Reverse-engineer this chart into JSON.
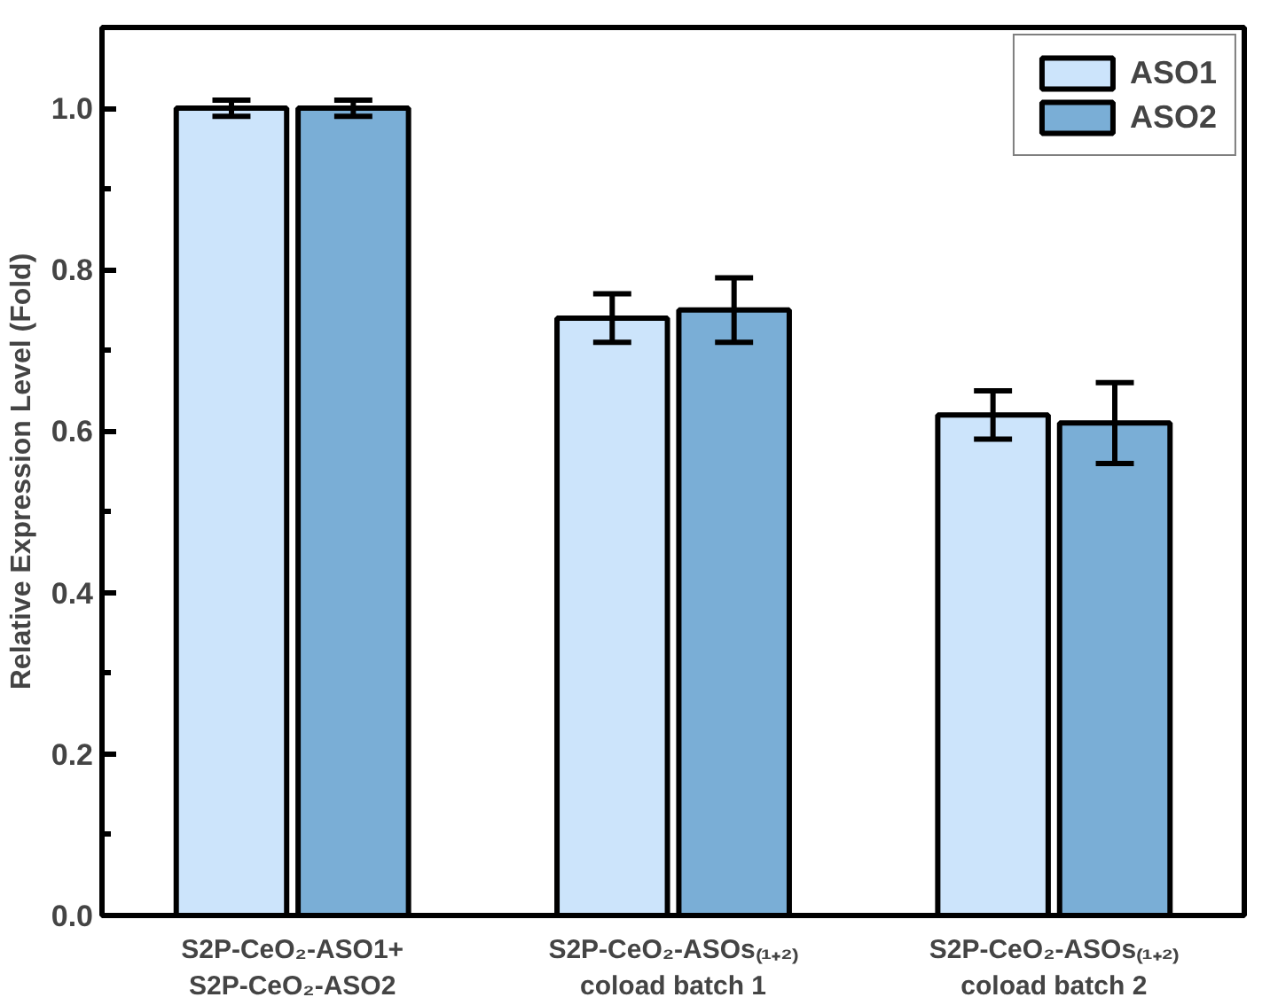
{
  "chart_data": {
    "type": "bar",
    "ylabel": "Relative Expression Level (Fold)",
    "categories": [
      "S2P-CeO₂-ASO1+\nS2P-CeO₂-ASO2",
      "S2P-CeO₂-ASOs₍₁₊₂₎\ncoload batch 1",
      "S2P-CeO₂-ASOs₍₁₊₂₎\ncoload batch 2"
    ],
    "series": [
      {
        "name": "ASO1",
        "color": "#cce4fb",
        "values": [
          1.0,
          0.74,
          0.62
        ],
        "errors": [
          0.01,
          0.03,
          0.03
        ]
      },
      {
        "name": "ASO2",
        "color": "#7aaed6",
        "values": [
          1.0,
          0.75,
          0.61
        ],
        "errors": [
          0.01,
          0.04,
          0.05
        ]
      }
    ],
    "ylim": [
      0,
      1.1
    ],
    "yticks": [
      {
        "value": 0,
        "label": "0.0"
      },
      0.2,
      0.4,
      0.6,
      0.8,
      {
        "value": 1,
        "label": "1.0"
      }
    ],
    "grid": false,
    "legend": "top right"
  }
}
